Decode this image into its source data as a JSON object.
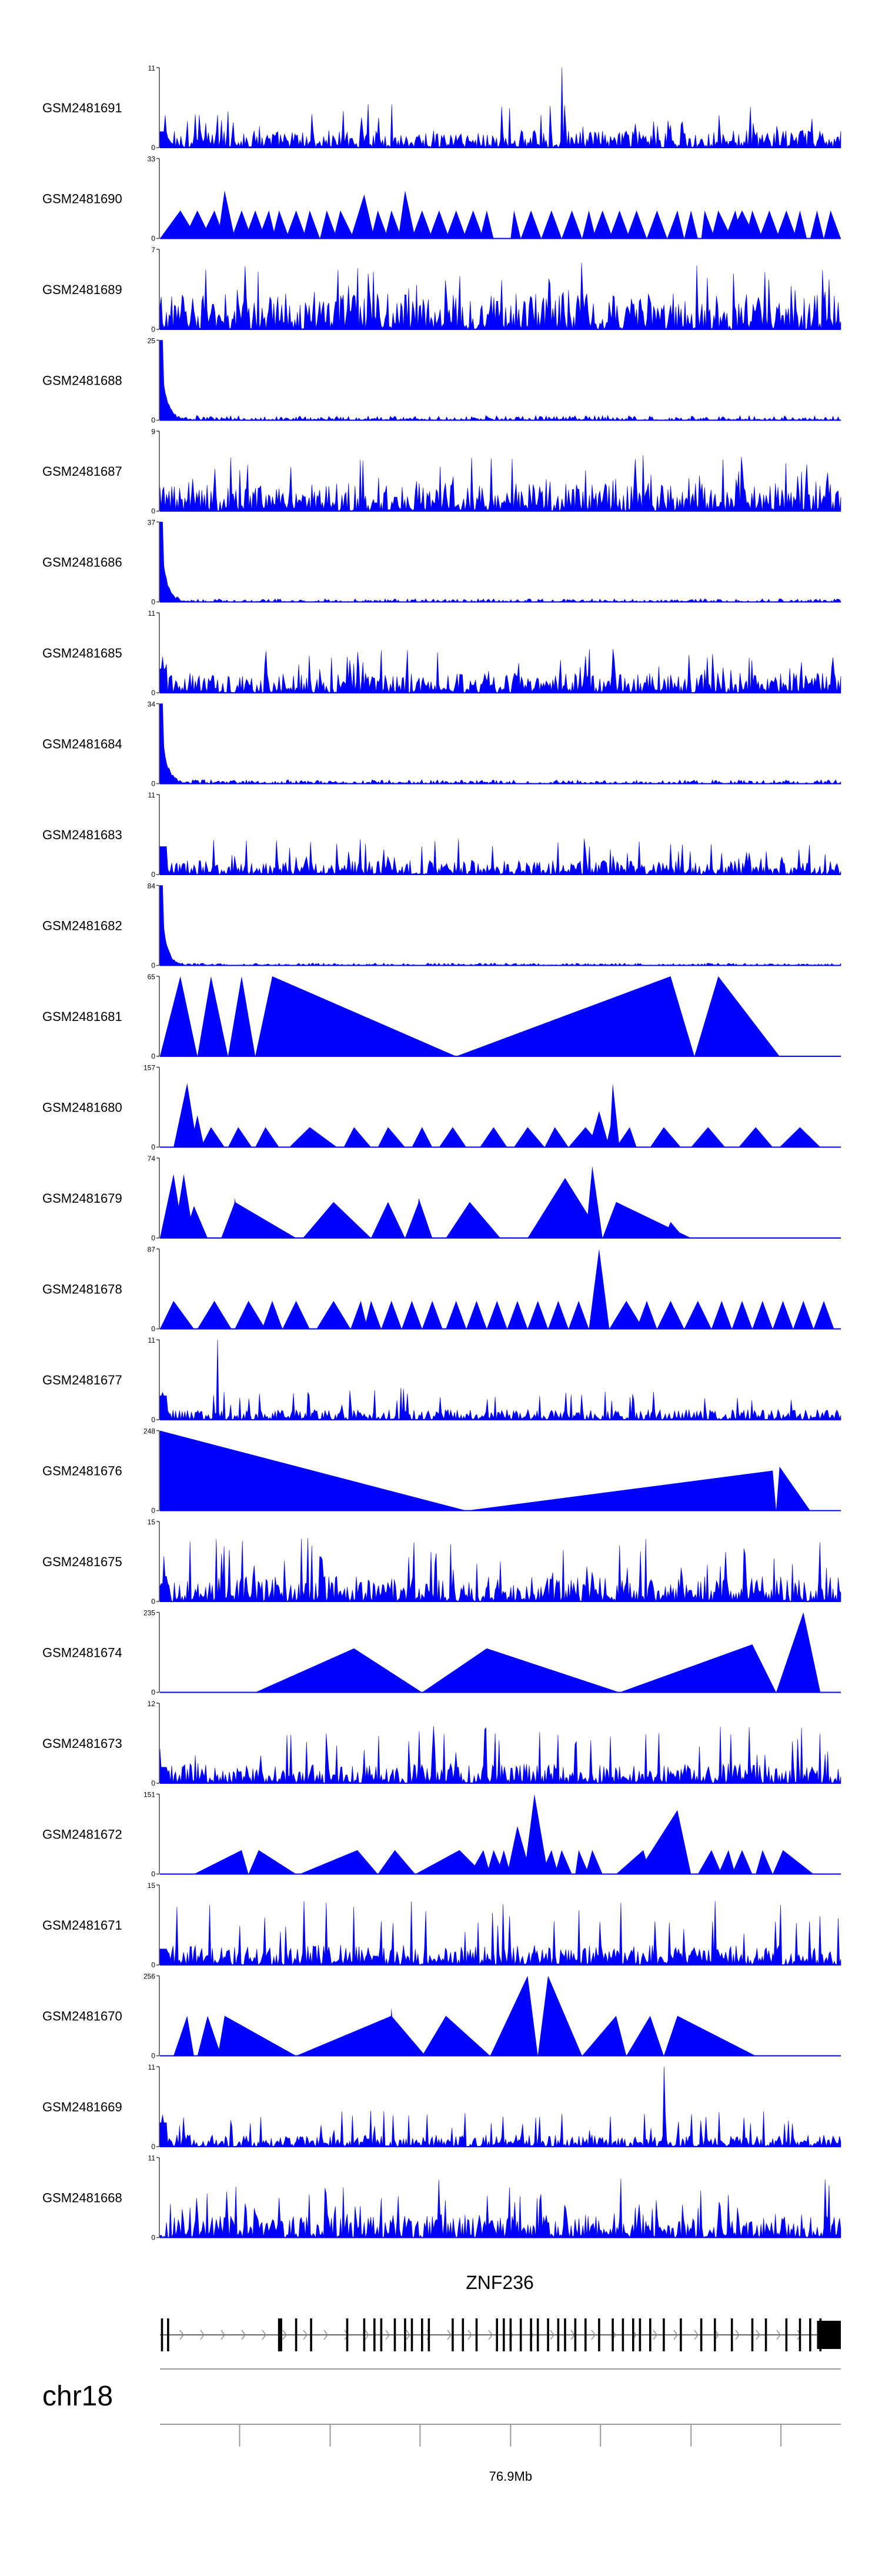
{
  "chart_data": {
    "type": "area",
    "title": "",
    "color": "#0000ff",
    "tracks": [
      {
        "name": "GSM2481691",
        "ymax": "11",
        "ymin": "0",
        "shape": "noise",
        "base": 0.22,
        "spike": 0.55,
        "head": 0.2,
        "max_pos": 0.59
      },
      {
        "name": "GSM2481690",
        "ymax": "33",
        "ymin": "0",
        "shape": "peaks",
        "peaks": [
          [
            0.0,
            0.03,
            0.055,
            0.35
          ],
          [
            0.035,
            0.055,
            0.075,
            0.35
          ],
          [
            0.06,
            0.08,
            0.095,
            0.35
          ],
          [
            0.085,
            0.095,
            0.11,
            0.6
          ],
          [
            0.105,
            0.12,
            0.135,
            0.35
          ],
          [
            0.125,
            0.14,
            0.155,
            0.35
          ],
          [
            0.145,
            0.16,
            0.17,
            0.35
          ],
          [
            0.165,
            0.175,
            0.19,
            0.35
          ],
          [
            0.185,
            0.2,
            0.215,
            0.35
          ],
          [
            0.21,
            0.22,
            0.235,
            0.35
          ],
          [
            0.235,
            0.245,
            0.26,
            0.35
          ],
          [
            0.255,
            0.265,
            0.285,
            0.35
          ],
          [
            0.28,
            0.3,
            0.315,
            0.55
          ],
          [
            0.31,
            0.32,
            0.335,
            0.35
          ],
          [
            0.33,
            0.34,
            0.355,
            0.35
          ],
          [
            0.35,
            0.36,
            0.375,
            0.6
          ],
          [
            0.37,
            0.385,
            0.4,
            0.35
          ],
          [
            0.395,
            0.41,
            0.425,
            0.35
          ],
          [
            0.42,
            0.435,
            0.45,
            0.35
          ],
          [
            0.445,
            0.46,
            0.475,
            0.35
          ],
          [
            0.47,
            0.48,
            0.49,
            0.35
          ],
          [
            0.515,
            0.52,
            0.53,
            0.35
          ],
          [
            0.53,
            0.545,
            0.56,
            0.35
          ],
          [
            0.56,
            0.575,
            0.59,
            0.35
          ],
          [
            0.59,
            0.605,
            0.62,
            0.35
          ],
          [
            0.62,
            0.63,
            0.64,
            0.35
          ],
          [
            0.635,
            0.65,
            0.665,
            0.35
          ],
          [
            0.66,
            0.675,
            0.69,
            0.35
          ],
          [
            0.685,
            0.7,
            0.715,
            0.35
          ],
          [
            0.715,
            0.73,
            0.745,
            0.35
          ],
          [
            0.745,
            0.76,
            0.77,
            0.35
          ],
          [
            0.77,
            0.78,
            0.79,
            0.35
          ],
          [
            0.795,
            0.8,
            0.815,
            0.35
          ],
          [
            0.81,
            0.82,
            0.84,
            0.35
          ],
          [
            0.83,
            0.845,
            0.855,
            0.35
          ],
          [
            0.835,
            0.855,
            0.875,
            0.35
          ],
          [
            0.86,
            0.87,
            0.885,
            0.35
          ],
          [
            0.88,
            0.895,
            0.91,
            0.35
          ],
          [
            0.905,
            0.92,
            0.935,
            0.35
          ],
          [
            0.93,
            0.94,
            0.95,
            0.35
          ],
          [
            0.955,
            0.965,
            0.975,
            0.35
          ],
          [
            0.975,
            0.985,
            1.0,
            0.35
          ]
        ]
      },
      {
        "name": "GSM2481689",
        "ymax": "7",
        "ymin": "0",
        "shape": "noise",
        "base": 0.45,
        "spike": 0.85,
        "head": 0.0
      },
      {
        "name": "GSM2481688",
        "ymax": "25",
        "ymin": "0",
        "shape": "decay",
        "base": 0.06,
        "head": 1.0
      },
      {
        "name": "GSM2481687",
        "ymax": "9",
        "ymin": "0",
        "shape": "noise",
        "base": 0.35,
        "spike": 0.7,
        "head": 0.0
      },
      {
        "name": "GSM2481686",
        "ymax": "37",
        "ymin": "0",
        "shape": "decay",
        "base": 0.04,
        "head": 1.0
      },
      {
        "name": "GSM2481685",
        "ymax": "11",
        "ymin": "0",
        "shape": "noise",
        "base": 0.25,
        "spike": 0.55,
        "head": 0.3
      },
      {
        "name": "GSM2481684",
        "ymax": "34",
        "ymin": "0",
        "shape": "decay",
        "base": 0.05,
        "head": 1.0
      },
      {
        "name": "GSM2481683",
        "ymax": "11",
        "ymin": "0",
        "shape": "noise",
        "base": 0.18,
        "spike": 0.45,
        "head": 0.35
      },
      {
        "name": "GSM2481682",
        "ymax": "84",
        "ymin": "0",
        "shape": "decay",
        "base": 0.03,
        "head": 1.0
      },
      {
        "name": "GSM2481681",
        "ymax": "65",
        "ymin": "0",
        "shape": "peaks",
        "peaks": [
          [
            0.0,
            0.03,
            0.055,
            1.0
          ],
          [
            0.055,
            0.075,
            0.1,
            1.0
          ],
          [
            0.1,
            0.12,
            0.14,
            1.0
          ],
          [
            0.14,
            0.165,
            0.435,
            1.0
          ],
          [
            0.435,
            0.75,
            0.785,
            1.0
          ],
          [
            0.785,
            0.82,
            0.91,
            1.0
          ]
        ]
      },
      {
        "name": "GSM2481680",
        "ymax": "157",
        "ymin": "0",
        "shape": "peaks",
        "peaks": [
          [
            0.02,
            0.04,
            0.055,
            0.8
          ],
          [
            0.045,
            0.055,
            0.065,
            0.4
          ],
          [
            0.06,
            0.075,
            0.095,
            0.25
          ],
          [
            0.1,
            0.115,
            0.135,
            0.25
          ],
          [
            0.14,
            0.155,
            0.175,
            0.25
          ],
          [
            0.19,
            0.22,
            0.26,
            0.25
          ],
          [
            0.27,
            0.285,
            0.31,
            0.25
          ],
          [
            0.32,
            0.335,
            0.36,
            0.25
          ],
          [
            0.37,
            0.385,
            0.4,
            0.25
          ],
          [
            0.41,
            0.43,
            0.45,
            0.25
          ],
          [
            0.47,
            0.49,
            0.51,
            0.25
          ],
          [
            0.52,
            0.54,
            0.565,
            0.25
          ],
          [
            0.565,
            0.58,
            0.6,
            0.25
          ],
          [
            0.6,
            0.625,
            0.65,
            0.25
          ],
          [
            0.63,
            0.645,
            0.66,
            0.45
          ],
          [
            0.655,
            0.665,
            0.67,
            0.4
          ],
          [
            0.66,
            0.665,
            0.675,
            0.8
          ],
          [
            0.67,
            0.69,
            0.7,
            0.25
          ],
          [
            0.72,
            0.74,
            0.765,
            0.25
          ],
          [
            0.78,
            0.805,
            0.83,
            0.25
          ],
          [
            0.85,
            0.875,
            0.9,
            0.25
          ],
          [
            0.91,
            0.94,
            0.97,
            0.25
          ]
        ]
      },
      {
        "name": "GSM2481679",
        "ymax": "74",
        "ymin": "0",
        "shape": "peaks",
        "peaks": [
          [
            0.0,
            0.02,
            0.035,
            0.8
          ],
          [
            0.02,
            0.035,
            0.05,
            0.8
          ],
          [
            0.035,
            0.05,
            0.07,
            0.4
          ],
          [
            0.09,
            0.11,
            0.2,
            0.45
          ],
          [
            0.105,
            0.11,
            0.12,
            0.5
          ],
          [
            0.21,
            0.255,
            0.31,
            0.45
          ],
          [
            0.31,
            0.335,
            0.36,
            0.45
          ],
          [
            0.36,
            0.38,
            0.4,
            0.45
          ],
          [
            0.375,
            0.38,
            0.4,
            0.5
          ],
          [
            0.42,
            0.455,
            0.5,
            0.45
          ],
          [
            0.54,
            0.595,
            0.65,
            0.75
          ],
          [
            0.625,
            0.635,
            0.65,
            0.9
          ],
          [
            0.65,
            0.67,
            0.78,
            0.45
          ],
          [
            0.74,
            0.75,
            0.77,
            0.2
          ]
        ]
      },
      {
        "name": "GSM2481678",
        "ymax": "87",
        "ymin": "0",
        "shape": "peaks",
        "peaks": [
          [
            0.0,
            0.02,
            0.05,
            0.35
          ],
          [
            0.055,
            0.08,
            0.105,
            0.35
          ],
          [
            0.11,
            0.13,
            0.155,
            0.35
          ],
          [
            0.15,
            0.165,
            0.18,
            0.35
          ],
          [
            0.18,
            0.2,
            0.22,
            0.35
          ],
          [
            0.23,
            0.255,
            0.28,
            0.35
          ],
          [
            0.28,
            0.295,
            0.305,
            0.35
          ],
          [
            0.3,
            0.31,
            0.325,
            0.35
          ],
          [
            0.325,
            0.34,
            0.355,
            0.35
          ],
          [
            0.355,
            0.37,
            0.385,
            0.35
          ],
          [
            0.385,
            0.4,
            0.415,
            0.35
          ],
          [
            0.42,
            0.435,
            0.45,
            0.35
          ],
          [
            0.45,
            0.465,
            0.48,
            0.35
          ],
          [
            0.48,
            0.495,
            0.51,
            0.35
          ],
          [
            0.51,
            0.525,
            0.54,
            0.35
          ],
          [
            0.54,
            0.555,
            0.57,
            0.35
          ],
          [
            0.57,
            0.585,
            0.6,
            0.35
          ],
          [
            0.6,
            0.615,
            0.63,
            0.35
          ],
          [
            0.63,
            0.645,
            0.66,
            1.0
          ],
          [
            0.66,
            0.685,
            0.71,
            0.35
          ],
          [
            0.7,
            0.715,
            0.73,
            0.35
          ],
          [
            0.73,
            0.75,
            0.77,
            0.35
          ],
          [
            0.77,
            0.79,
            0.81,
            0.35
          ],
          [
            0.81,
            0.825,
            0.84,
            0.35
          ],
          [
            0.84,
            0.855,
            0.87,
            0.35
          ],
          [
            0.87,
            0.885,
            0.9,
            0.35
          ],
          [
            0.9,
            0.915,
            0.93,
            0.35
          ],
          [
            0.93,
            0.945,
            0.96,
            0.35
          ],
          [
            0.96,
            0.975,
            0.99,
            0.35
          ]
        ]
      },
      {
        "name": "GSM2481677",
        "ymax": "11",
        "ymin": "0",
        "shape": "noise",
        "base": 0.13,
        "spike": 0.4,
        "head": 0.3,
        "max_pos": 0.085
      },
      {
        "name": "GSM2481676",
        "ymax": "248",
        "ymin": "0",
        "shape": "peaks",
        "peaks": [
          [
            0.0,
            0.0,
            0.45,
            1.0
          ],
          [
            0.45,
            0.9,
            0.905,
            0.5
          ],
          [
            0.905,
            0.91,
            0.955,
            0.55
          ]
        ]
      },
      {
        "name": "GSM2481675",
        "ymax": "15",
        "ymin": "0",
        "shape": "noise",
        "base": 0.32,
        "spike": 0.8,
        "head": 0.0
      },
      {
        "name": "GSM2481674",
        "ymax": "235",
        "ymin": "0",
        "shape": "peaks",
        "peaks": [
          [
            0.14,
            0.285,
            0.385,
            0.55
          ],
          [
            0.385,
            0.48,
            0.675,
            0.55
          ],
          [
            0.675,
            0.87,
            0.905,
            0.6
          ],
          [
            0.905,
            0.945,
            0.97,
            1.0
          ]
        ]
      },
      {
        "name": "GSM2481673",
        "ymax": "12",
        "ymin": "0",
        "shape": "noise",
        "base": 0.25,
        "spike": 0.75,
        "head": 0.2
      },
      {
        "name": "GSM2481672",
        "ymax": "151",
        "ymin": "0",
        "shape": "peaks",
        "peaks": [
          [
            0.05,
            0.12,
            0.13,
            0.3
          ],
          [
            0.13,
            0.145,
            0.2,
            0.3
          ],
          [
            0.205,
            0.29,
            0.32,
            0.3
          ],
          [
            0.32,
            0.345,
            0.375,
            0.3
          ],
          [
            0.375,
            0.44,
            0.475,
            0.3
          ],
          [
            0.455,
            0.475,
            0.485,
            0.3
          ],
          [
            0.48,
            0.49,
            0.505,
            0.3
          ],
          [
            0.495,
            0.505,
            0.515,
            0.3
          ],
          [
            0.51,
            0.525,
            0.545,
            0.6
          ],
          [
            0.535,
            0.55,
            0.57,
            1.0
          ],
          [
            0.56,
            0.575,
            0.585,
            0.3
          ],
          [
            0.58,
            0.59,
            0.605,
            0.3
          ],
          [
            0.61,
            0.615,
            0.63,
            0.3
          ],
          [
            0.625,
            0.635,
            0.65,
            0.3
          ],
          [
            0.67,
            0.71,
            0.72,
            0.3
          ],
          [
            0.7,
            0.76,
            0.78,
            0.8
          ],
          [
            0.79,
            0.81,
            0.825,
            0.3
          ],
          [
            0.82,
            0.835,
            0.845,
            0.3
          ],
          [
            0.84,
            0.855,
            0.87,
            0.3
          ],
          [
            0.875,
            0.885,
            0.9,
            0.3
          ],
          [
            0.9,
            0.915,
            0.96,
            0.3
          ]
        ]
      },
      {
        "name": "GSM2481671",
        "ymax": "15",
        "ymin": "0",
        "shape": "noise",
        "base": 0.25,
        "spike": 0.8,
        "head": 0.2
      },
      {
        "name": "GSM2481670",
        "ymax": "256",
        "ymin": "0",
        "shape": "peaks",
        "peaks": [
          [
            0.02,
            0.04,
            0.05,
            0.5
          ],
          [
            0.055,
            0.07,
            0.09,
            0.5
          ],
          [
            0.085,
            0.095,
            0.2,
            0.5
          ],
          [
            0.2,
            0.34,
            0.39,
            0.5
          ],
          [
            0.335,
            0.34,
            0.345,
            0.6
          ],
          [
            0.385,
            0.42,
            0.485,
            0.5
          ],
          [
            0.485,
            0.54,
            0.555,
            1.0
          ],
          [
            0.555,
            0.57,
            0.62,
            1.0
          ],
          [
            0.62,
            0.67,
            0.685,
            0.5
          ],
          [
            0.685,
            0.72,
            0.74,
            0.5
          ],
          [
            0.74,
            0.76,
            0.875,
            0.5
          ]
        ]
      },
      {
        "name": "GSM2481669",
        "ymax": "11",
        "ymin": "0",
        "shape": "noise",
        "base": 0.15,
        "spike": 0.45,
        "head": 0.3,
        "max_pos": 0.74
      },
      {
        "name": "GSM2481668",
        "ymax": "11",
        "ymin": "0",
        "shape": "noise",
        "base": 0.3,
        "spike": 0.75,
        "head": 0.0
      }
    ],
    "gene": {
      "name": "ZNF236",
      "exons": [
        0.003,
        0.012,
        0.175,
        0.178,
        0.2,
        0.222,
        0.275,
        0.3,
        0.315,
        0.325,
        0.345,
        0.36,
        0.37,
        0.385,
        0.395,
        0.43,
        0.445,
        0.465,
        0.495,
        0.505,
        0.515,
        0.53,
        0.545,
        0.555,
        0.57,
        0.585,
        0.595,
        0.61,
        0.625,
        0.645,
        0.665,
        0.68,
        0.695,
        0.705,
        0.72,
        0.74,
        0.765,
        0.795,
        0.815,
        0.84,
        0.87,
        0.89,
        0.92,
        0.94,
        0.955,
        0.97
      ],
      "utr": [
        0.965,
        1.0
      ]
    },
    "ideogram": {
      "chromosome": "chr18",
      "axis_label": "76.9Mb",
      "axis_label_pos": 0.515,
      "ticks": [
        0.117,
        0.25,
        0.382,
        0.515,
        0.647,
        0.78,
        0.912
      ]
    }
  }
}
